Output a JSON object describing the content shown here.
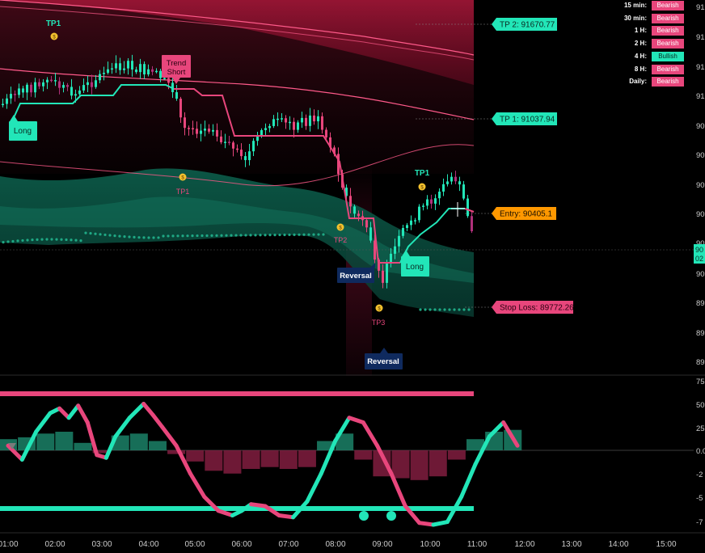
{
  "chart_data": {
    "type": "line",
    "price_axis": {
      "tick_labels": [
        "91",
        "91",
        "91",
        "91",
        "90",
        "90",
        "90",
        "90",
        "90",
        "89",
        "89",
        "89"
      ],
      "current_price_label": [
        "90",
        "02"
      ]
    },
    "time_axis": {
      "tick_labels": [
        "01:00",
        "02:00",
        "03:00",
        "04:00",
        "05:00",
        "06:00",
        "07:00",
        "08:00",
        "09:00",
        "10:00",
        "11:00",
        "12:00",
        "13:00",
        "14:00",
        "15:00"
      ]
    },
    "levels": {
      "tp2": {
        "label": "TP 2: 91670.77",
        "value": 91670.77
      },
      "tp1": {
        "label": "TP 1: 91037.94",
        "value": 91037.94
      },
      "entry": {
        "label": "Entry: 90405.1",
        "value": 90405.1
      },
      "stop_loss": {
        "label": "Stop Loss: 89772.26",
        "value": 89772.26
      }
    },
    "signals": [
      {
        "text": "TP1",
        "kind": "tp-long"
      },
      {
        "text": "Trend\nShort",
        "kind": "trend-short"
      },
      {
        "text": "Long",
        "kind": "long"
      },
      {
        "text": "TP1",
        "kind": "tp-short"
      },
      {
        "text": "TP2",
        "kind": "tp-short"
      },
      {
        "text": "Reversal",
        "kind": "reversal"
      },
      {
        "text": "TP3",
        "kind": "tp-short"
      },
      {
        "text": "Reversal",
        "kind": "reversal"
      },
      {
        "text": "Long",
        "kind": "long"
      },
      {
        "text": "TP1",
        "kind": "tp-long"
      }
    ],
    "oscillator_axis": {
      "tick_labels": [
        "75",
        "50",
        "25",
        "0.0",
        "-2",
        "-5",
        "-7"
      ],
      "values": [
        75,
        50,
        25,
        0,
        -25,
        -50,
        -75
      ]
    },
    "oscillator_series": {
      "x_hours": [
        0.0,
        0.3,
        0.6,
        0.9,
        1.1,
        1.3,
        1.5,
        1.7,
        1.9,
        2.1,
        2.3,
        2.6,
        2.9,
        3.1,
        3.3,
        3.6,
        3.9,
        4.2,
        4.5,
        4.8,
        5.0,
        5.2,
        5.5,
        5.8,
        6.1,
        6.4,
        6.7,
        7.0,
        7.3,
        7.6,
        7.9,
        8.2,
        8.5,
        8.8,
        9.1,
        9.4,
        9.7,
        10.0,
        10.3,
        10.6,
        10.9
      ],
      "values": [
        5,
        -10,
        20,
        40,
        45,
        35,
        48,
        30,
        -5,
        -8,
        15,
        35,
        50,
        38,
        25,
        5,
        -25,
        -50,
        -65,
        -70,
        -65,
        -58,
        -60,
        -70,
        -72,
        -55,
        -25,
        10,
        35,
        30,
        5,
        -25,
        -60,
        -78,
        -80,
        -77,
        -50,
        -15,
        15,
        30,
        5
      ]
    },
    "momentum_histogram": [
      {
        "x_hours": 0.0,
        "value": 12
      },
      {
        "x_hours": 0.4,
        "value": 14
      },
      {
        "x_hours": 0.8,
        "value": 18
      },
      {
        "x_hours": 1.2,
        "value": 20
      },
      {
        "x_hours": 1.6,
        "value": 8
      },
      {
        "x_hours": 2.0,
        "value": -3
      },
      {
        "x_hours": 2.4,
        "value": 16
      },
      {
        "x_hours": 2.8,
        "value": 18
      },
      {
        "x_hours": 3.2,
        "value": 10
      },
      {
        "x_hours": 3.6,
        "value": -4
      },
      {
        "x_hours": 4.0,
        "value": -12
      },
      {
        "x_hours": 4.4,
        "value": -22
      },
      {
        "x_hours": 4.8,
        "value": -25
      },
      {
        "x_hours": 5.2,
        "value": -20
      },
      {
        "x_hours": 5.6,
        "value": -18
      },
      {
        "x_hours": 6.0,
        "value": -20
      },
      {
        "x_hours": 6.4,
        "value": -18
      },
      {
        "x_hours": 6.8,
        "value": 10
      },
      {
        "x_hours": 7.2,
        "value": 18
      },
      {
        "x_hours": 7.6,
        "value": -10
      },
      {
        "x_hours": 8.0,
        "value": -28
      },
      {
        "x_hours": 8.4,
        "value": -30
      },
      {
        "x_hours": 8.8,
        "value": -32
      },
      {
        "x_hours": 9.2,
        "value": -28
      },
      {
        "x_hours": 9.6,
        "value": -10
      },
      {
        "x_hours": 10.0,
        "value": 12
      },
      {
        "x_hours": 10.4,
        "value": 20
      },
      {
        "x_hours": 10.8,
        "value": 22
      }
    ],
    "oscillator_bands": {
      "upper": 62,
      "lower": -62
    },
    "timeframe_trends": [
      {
        "tf": "15 min:",
        "status": "Bearish"
      },
      {
        "tf": "30 min:",
        "status": "Bearish"
      },
      {
        "tf": "1 H:",
        "status": "Bearish"
      },
      {
        "tf": "2 H:",
        "status": "Bearish"
      },
      {
        "tf": "4 H:",
        "status": "Bullish"
      },
      {
        "tf": "8 H:",
        "status": "Bearish"
      },
      {
        "tf": "Daily:",
        "status": "Bearish"
      }
    ]
  },
  "colors": {
    "bull": "#22e6b8",
    "bear": "#e8467c",
    "entry": "#ff9800",
    "reversal": "#0f2a5e",
    "background": "#000000"
  }
}
